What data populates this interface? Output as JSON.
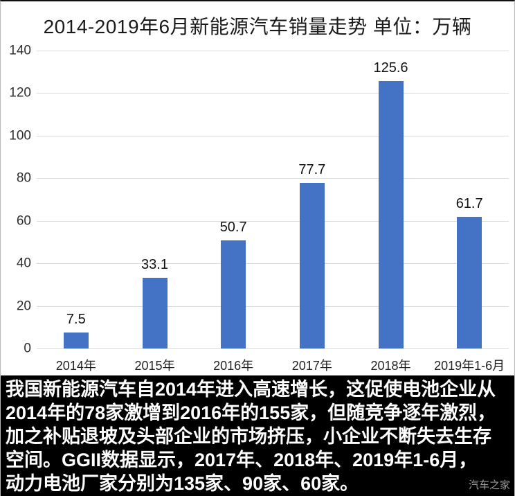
{
  "chart_data": {
    "type": "bar",
    "title": "2014-2019年6月新能源汽车销量走势 单位：万辆",
    "unit": "万辆",
    "categories": [
      "2014年",
      "2015年",
      "2016年",
      "2017年",
      "2018年",
      "2019年1-6月"
    ],
    "values": [
      7.5,
      33.1,
      50.7,
      77.7,
      125.6,
      61.7
    ],
    "value_labels": [
      "7.5",
      "33.1",
      "50.7",
      "77.7",
      "125.6",
      "61.7"
    ],
    "ylim": [
      0,
      140
    ],
    "yticks": [
      0,
      20,
      40,
      60,
      80,
      100,
      120,
      140
    ],
    "grid": true,
    "legend": "none",
    "bar_color": "#4472C4",
    "gridline_color": "#dbdbdb"
  },
  "caption": {
    "background": "#000000",
    "text_color": "#ffffff",
    "lines": [
      "我国新能源汽车自2014年进入高速增长，这促使电池企业从",
      "2014年的78家激增到2016年的155家，但随竞争逐年激烈，",
      "加之补贴退坡及头部企业的市场挤压，小企业不断失去生存",
      "空间。GGII数据显示，2017年、2018年、2019年1-6月，",
      "动力电池厂家分别为135家、90家、60家。"
    ]
  },
  "watermark": "汽车之家"
}
